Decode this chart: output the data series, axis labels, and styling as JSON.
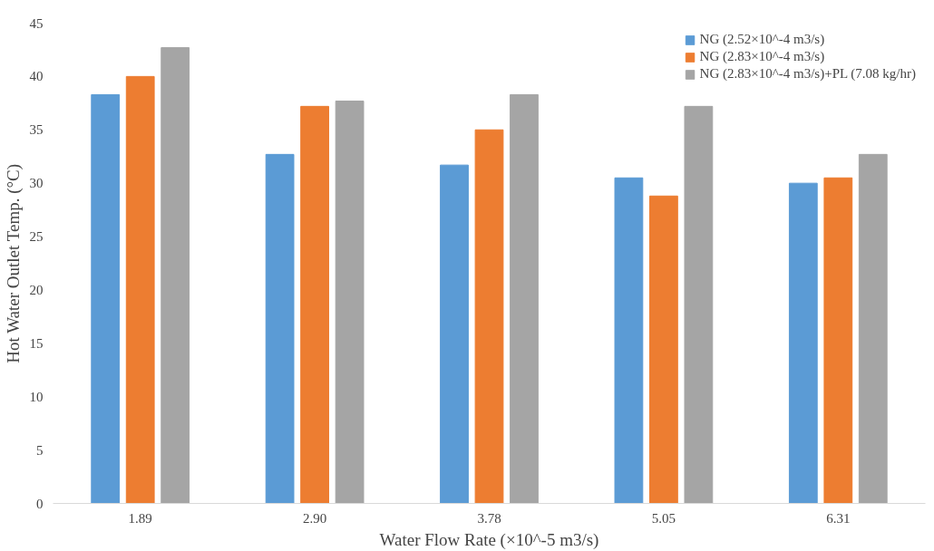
{
  "chart_data": {
    "type": "bar",
    "xlabel": "Water Flow Rate (×10^-5 m3/s)",
    "ylabel": "Hot Water Outlet Temp. (°C)",
    "categories": [
      "1.89",
      "2.90",
      "3.78",
      "5.05",
      "6.31"
    ],
    "series": [
      {
        "name": "NG (2.52×10^-4 m3/s)",
        "color": "#5b9bd5",
        "values": [
          38.3,
          32.7,
          31.7,
          30.5,
          30.0
        ]
      },
      {
        "name": "NG (2.83×10^-4 m3/s)",
        "color": "#ed7d31",
        "values": [
          40.0,
          37.2,
          35.0,
          28.8,
          30.5
        ]
      },
      {
        "name": "NG (2.83×10^-4 m3/s)+PL (7.08 kg/hr)",
        "color": "#a5a5a5",
        "values": [
          42.7,
          37.7,
          38.3,
          37.2,
          32.7
        ]
      }
    ],
    "ylim": [
      0,
      45
    ],
    "yticks": [
      0,
      5,
      10,
      15,
      20,
      25,
      30,
      35,
      40,
      45
    ],
    "grid": false,
    "legend": "top right"
  }
}
